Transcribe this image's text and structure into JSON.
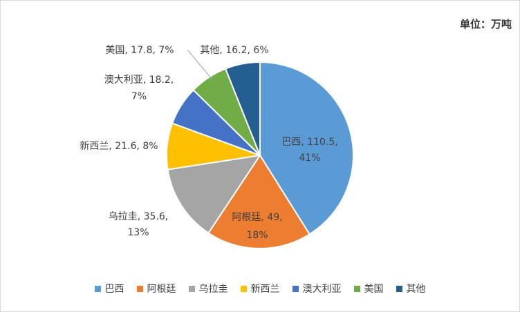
{
  "unit_label": "单位：万吨",
  "chart_data": {
    "type": "pie",
    "title": "",
    "unit": "单位：万吨",
    "slices": [
      {
        "name": "巴西",
        "value": 110.5,
        "percent": "41%",
        "color": "#5b9bd5",
        "label": "巴西, 110.5, 41%"
      },
      {
        "name": "阿根廷",
        "value": 49,
        "percent": "18%",
        "color": "#ed7d31",
        "label": "阿根廷, 49, 18%"
      },
      {
        "name": "乌拉圭",
        "value": 35.6,
        "percent": "13%",
        "color": "#a5a5a5",
        "label": "乌拉圭, 35.6, 13%"
      },
      {
        "name": "新西兰",
        "value": 21.6,
        "percent": "8%",
        "color": "#ffc000",
        "label": "新西兰, 21.6, 8%"
      },
      {
        "name": "澳大利亚",
        "value": 18.2,
        "percent": "7%",
        "color": "#4472c4",
        "label": "澳大利亚, 18.2, 7%"
      },
      {
        "name": "美国",
        "value": 17.8,
        "percent": "7%",
        "color": "#70ad47",
        "label": "美国, 17.8, 7%"
      },
      {
        "name": "其他",
        "value": 16.2,
        "percent": "6%",
        "color": "#255e91",
        "label": "其他, 16.2, 6%"
      }
    ],
    "legend_position": "bottom"
  }
}
